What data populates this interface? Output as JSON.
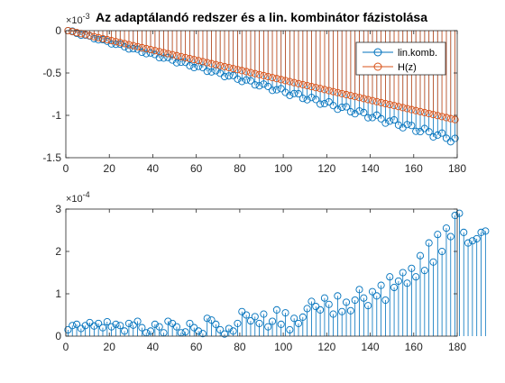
{
  "figure": {
    "title": "Az adaptálandó redszer és a lin. kombinátor fázistolása"
  },
  "colors": {
    "series1": "#0072BD",
    "series2": "#D95319",
    "axis": "#262626"
  },
  "chart_data": [
    {
      "type": "stem",
      "title": "Az adaptálandó redszer és a lin. kombinátor fázistolása",
      "xlabel": "",
      "ylabel": "",
      "xlim": [
        0,
        180
      ],
      "ylim": [
        -1.5,
        0
      ],
      "y_exponent_label": "×10",
      "y_exponent_power": "-3",
      "x_ticks": [
        "0",
        "20",
        "40",
        "60",
        "80",
        "100",
        "120",
        "140",
        "160",
        "180"
      ],
      "y_ticks": [
        "0",
        "-0.5",
        "-1",
        "-1.5"
      ],
      "y_tick_values": [
        0,
        -0.5,
        -1,
        -1.5
      ],
      "legend_position": "top-right",
      "marker": "circle",
      "x_start": 1,
      "x_step": 2,
      "n_points": 90,
      "series": [
        {
          "name": "lin.komb.",
          "color": "#0072BD",
          "y_start": 0,
          "y_end": -1.29,
          "ripple": 0.03,
          "note_values_scaled": "y values in units of 1e-3"
        },
        {
          "name": "H(z)",
          "color": "#D95319",
          "y_start": 0,
          "y_end": -1.05,
          "ripple": 0,
          "note_values_scaled": "y values in units of 1e-3"
        }
      ]
    },
    {
      "type": "stem",
      "title": "",
      "xlabel": "",
      "ylabel": "",
      "xlim": [
        0,
        180
      ],
      "ylim": [
        0,
        3
      ],
      "y_exponent_label": "×10",
      "y_exponent_power": "-4",
      "x_ticks": [
        "0",
        "20",
        "40",
        "60",
        "80",
        "100",
        "120",
        "140",
        "160",
        "180"
      ],
      "y_ticks": [
        "0",
        "1",
        "2",
        "3"
      ],
      "y_tick_values": [
        0,
        1,
        2,
        3
      ],
      "marker": "circle",
      "x_start": 1,
      "x_step": 2,
      "series": [
        {
          "name": "",
          "color": "#0072BD",
          "values": [
            0.15,
            0.25,
            0.28,
            0.18,
            0.25,
            0.32,
            0.24,
            0.3,
            0.2,
            0.34,
            0.22,
            0.28,
            0.25,
            0.12,
            0.3,
            0.26,
            0.35,
            0.2,
            0.08,
            0.12,
            0.28,
            0.22,
            0.08,
            0.35,
            0.3,
            0.22,
            0.08,
            0.1,
            0.3,
            0.2,
            0.12,
            0.06,
            0.42,
            0.38,
            0.28,
            0.15,
            0.05,
            0.18,
            0.12,
            0.3,
            0.58,
            0.5,
            0.36,
            0.46,
            0.3,
            0.52,
            0.22,
            0.35,
            0.62,
            0.28,
            0.55,
            0.15,
            0.42,
            0.3,
            0.45,
            0.65,
            0.82,
            0.7,
            0.62,
            0.9,
            0.75,
            0.52,
            0.95,
            0.58,
            0.8,
            0.6,
            0.85,
            1.1,
            0.9,
            0.72,
            1.05,
            0.95,
            1.2,
            0.85,
            1.4,
            1.15,
            1.3,
            1.5,
            1.25,
            1.6,
            1.4,
            1.9,
            1.55,
            2.2,
            1.75,
            2.4,
            2.0,
            2.55,
            2.35,
            2.85,
            2.9,
            2.45,
            2.2,
            2.25,
            2.3,
            2.45,
            2.48
          ]
        }
      ]
    }
  ]
}
